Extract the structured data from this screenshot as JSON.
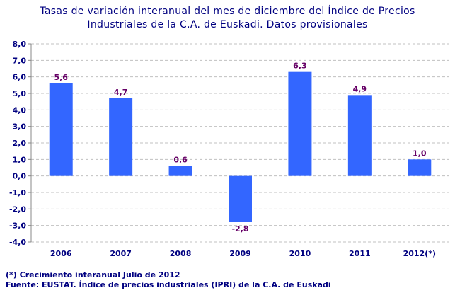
{
  "chart_data": {
    "type": "bar",
    "title_lines": [
      "Tasas de variación interanual del mes de diciembre del Índice de Precios",
      "Industriales de la C.A. de Euskadi. Datos provisionales"
    ],
    "categories": [
      "2006",
      "2007",
      "2008",
      "2009",
      "2010",
      "2011",
      "2012(*)"
    ],
    "values": [
      5.6,
      4.7,
      0.6,
      -2.8,
      6.3,
      4.9,
      1.0
    ],
    "data_labels": [
      "5,6",
      "4,7",
      "0,6",
      "-2,8",
      "6,3",
      "4,9",
      "1,0"
    ],
    "ylim": [
      -4,
      8
    ],
    "yticks": [
      "-4,0",
      "-3,0",
      "-2,0",
      "-1,0",
      "0,0",
      "1,0",
      "2,0",
      "3,0",
      "4,0",
      "5,0",
      "6,0",
      "7,0",
      "8,0"
    ],
    "grid": true,
    "colors": {
      "bar": "#3366ff",
      "label": "#660066",
      "axis_text": "#000080",
      "grid": "#c0c0c0"
    }
  },
  "notes": {
    "footnote": "(*) Crecimiento interanual Julio de 2012",
    "source": "Fuente: EUSTAT. Índice de precios industriales (IPRI) de la C.A. de Euskadi"
  }
}
